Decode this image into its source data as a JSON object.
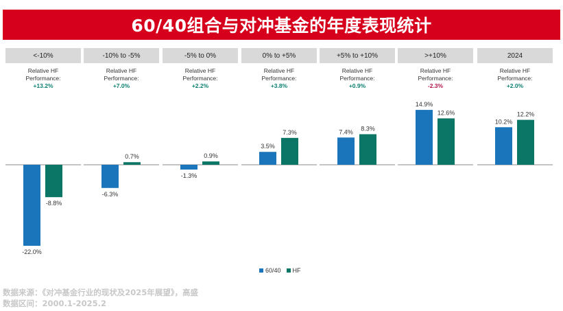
{
  "title": "60/40组合与对冲基金的年度表现统计",
  "relative_label": "Relative HF Performance:",
  "colors": {
    "title_bg": "#d6001c",
    "series_6040": "#1b75bb",
    "series_hf": "#0b7566",
    "pos_text": "#0b7f6f",
    "neg_text": "#b0124a"
  },
  "panels": [
    {
      "header": "<-10%",
      "rel_value": "+13.2%",
      "rel_sign": "pos"
    },
    {
      "header": "-10% to -5%",
      "rel_value": "+7.0%",
      "rel_sign": "pos"
    },
    {
      "header": "-5% to 0%",
      "rel_value": "+2.2%",
      "rel_sign": "pos"
    },
    {
      "header": "0% to +5%",
      "rel_value": "+3.8%",
      "rel_sign": "pos"
    },
    {
      "header": "+5% to +10%",
      "rel_value": "+0.9%",
      "rel_sign": "pos"
    },
    {
      "header": ">+10%",
      "rel_value": "-2.3%",
      "rel_sign": "neg"
    },
    {
      "header": "2024",
      "rel_value": "+2.0%",
      "rel_sign": "pos"
    }
  ],
  "chart_data": {
    "type": "bar",
    "categories": [
      "<-10%",
      "-10% to -5%",
      "-5% to 0%",
      "0% to +5%",
      "+5% to +10%",
      ">+10%",
      "2024"
    ],
    "series": [
      {
        "name": "60/40",
        "values": [
          -22.0,
          -6.3,
          -1.3,
          3.5,
          7.4,
          14.9,
          10.2
        ],
        "labels": [
          "-22.0%",
          "-6.3%",
          "-1.3%",
          "3.5%",
          "7.4%",
          "14.9%",
          "10.2%"
        ]
      },
      {
        "name": "HF",
        "values": [
          -8.8,
          0.7,
          0.9,
          7.3,
          8.3,
          12.6,
          12.2
        ],
        "labels": [
          "-8.8%",
          "0.7%",
          "0.9%",
          "7.3%",
          "8.3%",
          "12.6%",
          "12.2%"
        ]
      }
    ],
    "legend_position": "bottom-center",
    "grid": false
  },
  "legend": [
    {
      "name": "60/40"
    },
    {
      "name": "HF"
    }
  ],
  "footer": {
    "source": "数据来源：《对冲基金行业的现状及2025年展望》，高盛",
    "period": "数据区间：2000.1-2025.2"
  }
}
